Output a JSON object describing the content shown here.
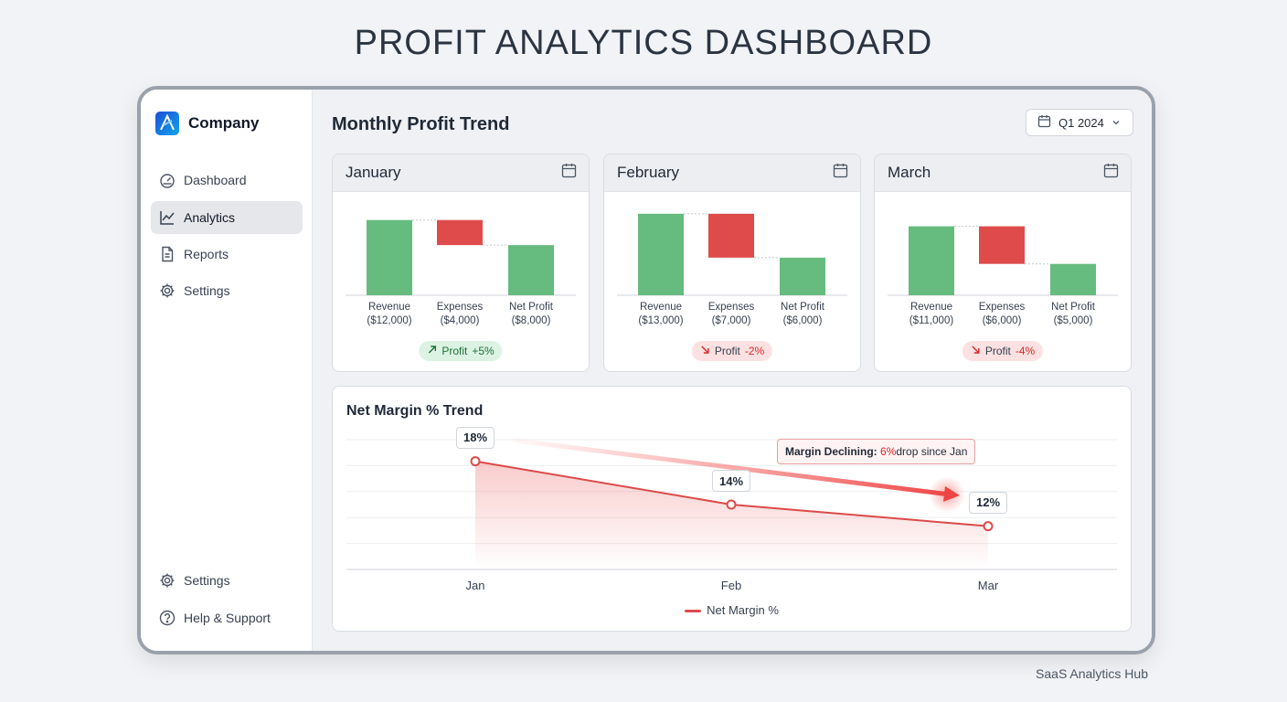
{
  "page_title": "PROFIT ANALYTICS DASHBOARD",
  "footer": "SaaS Analytics Hub",
  "sidebar": {
    "brand": "Company",
    "nav": [
      {
        "label": "Dashboard",
        "icon": "gauge-icon",
        "active": false
      },
      {
        "label": "Analytics",
        "icon": "line-chart-icon",
        "active": true
      },
      {
        "label": "Reports",
        "icon": "document-icon",
        "active": false
      },
      {
        "label": "Settings",
        "icon": "gear-icon",
        "active": false
      }
    ],
    "bottom": [
      {
        "label": "Settings",
        "icon": "gear-icon"
      },
      {
        "label": "Help & Support",
        "icon": "question-icon"
      }
    ]
  },
  "main": {
    "title": "Monthly Profit Trend",
    "period": "Q1 2024"
  },
  "months": [
    {
      "name": "January",
      "revenue": 12000,
      "expenses": 4000,
      "net": 8000,
      "labels": [
        "Revenue",
        "Expenses",
        "Net Profit"
      ],
      "values_text": [
        "($12,000)",
        "($4,000)",
        "($8,000)"
      ],
      "trend_label": "Profit",
      "trend_value": "+5%",
      "direction": "up"
    },
    {
      "name": "February",
      "revenue": 13000,
      "expenses": 7000,
      "net": 6000,
      "labels": [
        "Revenue",
        "Expenses",
        "Net Profit"
      ],
      "values_text": [
        "($13,000)",
        "($7,000)",
        "($6,000)"
      ],
      "trend_label": "Profit",
      "trend_value": "-2%",
      "direction": "down"
    },
    {
      "name": "March",
      "revenue": 11000,
      "expenses": 6000,
      "net": 5000,
      "labels": [
        "Revenue",
        "Expenses",
        "Net Profit"
      ],
      "values_text": [
        "($11,000)",
        "($6,000)",
        "($5,000)"
      ],
      "trend_label": "Profit",
      "trend_value": "-4%",
      "direction": "down"
    }
  ],
  "colors": {
    "green": "#66bb7e",
    "red": "#df4b4b",
    "line": "#dc4a4a"
  },
  "chart_data": {
    "type": "line",
    "title": "Net Margin % Trend",
    "categories": [
      "Jan",
      "Feb",
      "Mar"
    ],
    "series": [
      {
        "name": "Net Margin %",
        "values": [
          18,
          14,
          12
        ]
      }
    ],
    "point_labels": [
      "18%",
      "14%",
      "12%"
    ],
    "ylim": [
      8,
      20
    ],
    "grid": true,
    "legend": "bottom-center",
    "annotation": {
      "bold": "Margin Declining:",
      "highlight": "6%",
      "rest": " drop since Jan"
    }
  }
}
